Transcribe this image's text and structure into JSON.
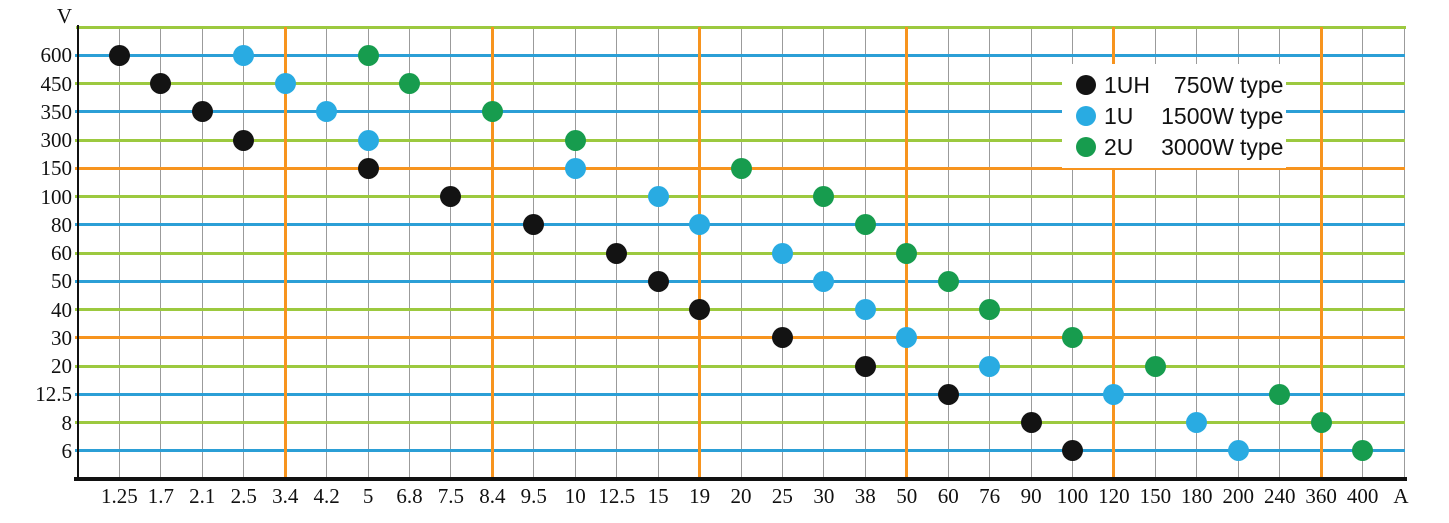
{
  "axes": {
    "y_unit": "V",
    "x_unit": "A"
  },
  "colors": {
    "background": "#ffffff",
    "text": "#111111",
    "axis": "#111111",
    "h_blue": "#2b9fd6",
    "h_green": "#9cc93f",
    "h_orange": "#f7941e",
    "v_gray": "#9b9b9b",
    "v_orange": "#f7941e",
    "dot_black": "#131313",
    "dot_blue": "#29abe2",
    "dot_green": "#179c4e"
  },
  "legend": {
    "entries": [
      {
        "model": "1UH",
        "watt": "750W",
        "suffix": "type",
        "color_key": "dot_black"
      },
      {
        "model": "1U",
        "watt": "1500W",
        "suffix": "type",
        "color_key": "dot_blue"
      },
      {
        "model": "2U",
        "watt": "3000W",
        "suffix": "type",
        "color_key": "dot_green"
      }
    ]
  },
  "chart_data": {
    "type": "scatter",
    "title": "",
    "xlabel": "A",
    "ylabel": "V",
    "x_axis_scale": "categorical",
    "y_axis_scale": "categorical",
    "grid": true,
    "legend_position": "top-right",
    "x_categories": [
      "1.25",
      "1.7",
      "2.1",
      "2.5",
      "3.4",
      "4.2",
      "5",
      "6.8",
      "7.5",
      "8.4",
      "9.5",
      "10",
      "12.5",
      "15",
      "19",
      "20",
      "25",
      "30",
      "38",
      "50",
      "60",
      "76",
      "90",
      "100",
      "120",
      "150",
      "180",
      "200",
      "240",
      "360",
      "400"
    ],
    "y_categories": [
      "600",
      "450",
      "350",
      "300",
      "150",
      "100",
      "80",
      "60",
      "50",
      "40",
      "30",
      "20",
      "12.5",
      "8",
      "6"
    ],
    "y_row_colors": [
      "blue",
      "green",
      "blue",
      "green",
      "orange",
      "green",
      "blue",
      "green",
      "blue",
      "green",
      "orange",
      "green",
      "blue",
      "green",
      "blue"
    ],
    "top_border_color": "green",
    "x_orange_indices": [
      4,
      9,
      14,
      19,
      24,
      29
    ],
    "series": [
      {
        "name": "1UH 750W type",
        "color_key": "dot_black",
        "points": [
          [
            "1.25",
            "600"
          ],
          [
            "1.7",
            "450"
          ],
          [
            "2.1",
            "350"
          ],
          [
            "2.5",
            "300"
          ],
          [
            "5",
            "150"
          ],
          [
            "7.5",
            "100"
          ],
          [
            "9.5",
            "80"
          ],
          [
            "12.5",
            "60"
          ],
          [
            "15",
            "50"
          ],
          [
            "19",
            "40"
          ],
          [
            "25",
            "30"
          ],
          [
            "38",
            "20"
          ],
          [
            "60",
            "12.5"
          ],
          [
            "90",
            "8"
          ],
          [
            "100",
            "6"
          ]
        ]
      },
      {
        "name": "1U 1500W type",
        "color_key": "dot_blue",
        "points": [
          [
            "2.5",
            "600"
          ],
          [
            "3.4",
            "450"
          ],
          [
            "4.2",
            "350"
          ],
          [
            "5",
            "300"
          ],
          [
            "10",
            "150"
          ],
          [
            "15",
            "100"
          ],
          [
            "19",
            "80"
          ],
          [
            "25",
            "60"
          ],
          [
            "30",
            "50"
          ],
          [
            "38",
            "40"
          ],
          [
            "50",
            "30"
          ],
          [
            "76",
            "20"
          ],
          [
            "120",
            "12.5"
          ],
          [
            "180",
            "8"
          ],
          [
            "200",
            "6"
          ]
        ]
      },
      {
        "name": "2U 3000W type",
        "color_key": "dot_green",
        "points": [
          [
            "5",
            "600"
          ],
          [
            "6.8",
            "450"
          ],
          [
            "8.4",
            "350"
          ],
          [
            "10",
            "300"
          ],
          [
            "20",
            "150"
          ],
          [
            "30",
            "100"
          ],
          [
            "38",
            "80"
          ],
          [
            "50",
            "60"
          ],
          [
            "60",
            "50"
          ],
          [
            "76",
            "40"
          ],
          [
            "100",
            "30"
          ],
          [
            "150",
            "20"
          ],
          [
            "240",
            "12.5"
          ],
          [
            "360",
            "8"
          ],
          [
            "400",
            "6"
          ]
        ]
      }
    ]
  }
}
